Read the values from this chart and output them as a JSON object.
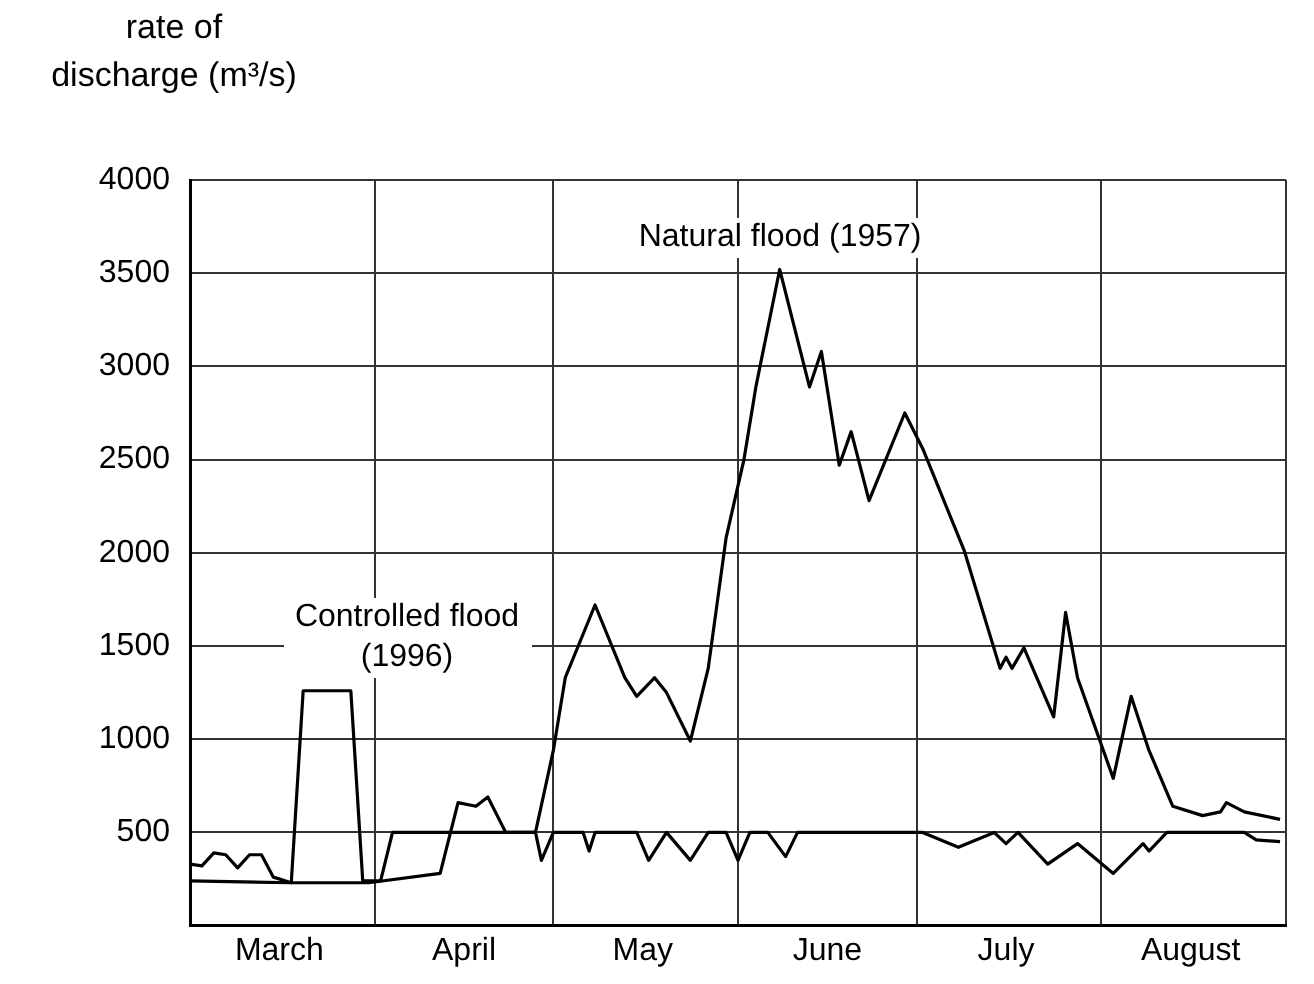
{
  "chart_data": {
    "type": "line",
    "ylabel": "rate of discharge (m³/s)",
    "grid": true,
    "marker": "none",
    "xlim": [
      "--03-01",
      "--09-01"
    ],
    "xticks": [
      {
        "value": "--03-01",
        "label": null
      },
      {
        "value": "--03-16",
        "label": "March"
      },
      {
        "value": "--04-01",
        "label": null
      },
      {
        "value": "--04-16",
        "label": "April"
      },
      {
        "value": "--05-01",
        "label": null
      },
      {
        "value": "--05-16",
        "label": "May"
      },
      {
        "value": "--06-01",
        "label": null
      },
      {
        "value": "--06-16",
        "label": "June"
      },
      {
        "value": "--07-01",
        "label": null
      },
      {
        "value": "--07-16",
        "label": "July"
      },
      {
        "value": "--08-01",
        "label": null
      },
      {
        "value": "--08-16",
        "label": "August"
      },
      {
        "value": "--09-01",
        "label": null
      }
    ],
    "ylim": [
      0,
      4000
    ],
    "yticks": [
      500,
      1000,
      1500,
      2000,
      2500,
      3000,
      3500,
      4000
    ],
    "series": [
      {
        "name": "Natural flood (1957)",
        "color": "#000000",
        "x": [
          "--03-01",
          "--03-03",
          "--03-05",
          "--03-07",
          "--03-09",
          "--03-11",
          "--03-13",
          "--03-15",
          "--03-18",
          "--03-31",
          "--04-12",
          "--04-15",
          "--04-18",
          "--04-20",
          "--04-23",
          "--04-28",
          "--05-01",
          "--05-03",
          "--05-08",
          "--05-13",
          "--05-15",
          "--05-18",
          "--05-20",
          "--05-24",
          "--05-27",
          "--05-30",
          "--06-02",
          "--06-04",
          "--06-08",
          "--06-13",
          "--06-15",
          "--06-18",
          "--06-20",
          "--06-23",
          "--06-29",
          "--07-02",
          "--07-09",
          "--07-15",
          "--07-16",
          "--07-17",
          "--07-19",
          "--07-24",
          "--07-26",
          "--07-28",
          "--08-03",
          "--08-06",
          "--08-09",
          "--08-13",
          "--08-18",
          "--08-21",
          "--08-22",
          "--08-25",
          "--08-31"
        ],
        "values": [
          330,
          320,
          390,
          380,
          310,
          380,
          380,
          260,
          230,
          230,
          280,
          660,
          640,
          690,
          500,
          500,
          940,
          1330,
          1720,
          1330,
          1230,
          1330,
          1250,
          990,
          1380,
          2080,
          2500,
          2890,
          3520,
          2890,
          3080,
          2470,
          2650,
          2280,
          2750,
          2560,
          2010,
          1380,
          1440,
          1380,
          1490,
          1120,
          1680,
          1330,
          790,
          1230,
          940,
          640,
          590,
          610,
          660,
          610,
          570
        ]
      },
      {
        "name": "Controlled flood (1996)",
        "color": "#000000",
        "x": [
          "--03-01",
          "--03-18",
          "--03-20",
          "--03-28",
          "--03-30",
          "--04-02",
          "--04-04",
          "--04-28",
          "--04-29",
          "--05-01",
          "--05-06",
          "--05-07",
          "--05-08",
          "--05-15",
          "--05-17",
          "--05-20",
          "--05-24",
          "--05-27",
          "--05-30",
          "--06-01",
          "--06-03",
          "--06-06",
          "--06-09",
          "--06-11",
          "--07-02",
          "--07-08",
          "--07-14",
          "--07-16",
          "--07-18",
          "--07-23",
          "--07-28",
          "--08-03",
          "--08-08",
          "--08-09",
          "--08-12",
          "--08-25",
          "--08-27",
          "--08-31"
        ],
        "values": [
          240,
          230,
          1260,
          1260,
          240,
          240,
          500,
          500,
          350,
          500,
          500,
          400,
          500,
          500,
          350,
          500,
          350,
          500,
          500,
          350,
          500,
          500,
          370,
          500,
          500,
          420,
          500,
          440,
          500,
          330,
          440,
          280,
          440,
          400,
          500,
          500,
          460,
          450
        ]
      }
    ]
  }
}
